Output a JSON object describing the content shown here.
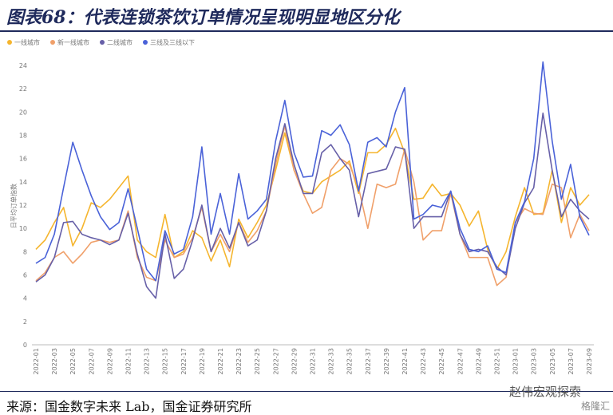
{
  "header": {
    "title": "图表68：代表连锁茶饮订单情况呈现明显地区分化"
  },
  "chart_data": {
    "type": "line",
    "y_label": "日平均订单指数",
    "categories": [
      "2022-01",
      null,
      "2022-03",
      null,
      "2022-05",
      null,
      "2022-07",
      null,
      "2022-09",
      null,
      "2022-11",
      null,
      "2022-13",
      null,
      "2022-15",
      null,
      "2022-17",
      null,
      "2022-19",
      null,
      "2022-21",
      null,
      "2022-23",
      null,
      "2022-25",
      null,
      "2022-27",
      null,
      "2022-29",
      null,
      "2022-31",
      null,
      "2022-33",
      null,
      "2022-35",
      null,
      "2022-37",
      null,
      "2022-39",
      null,
      "2022-41",
      null,
      "2022-43",
      null,
      "2022-45",
      null,
      "2022-47",
      null,
      "2022-49",
      null,
      "2022-51",
      null,
      "2023-01",
      null,
      "2023-03",
      null,
      "2023-05",
      null,
      "2023-07",
      null,
      "2023-09"
    ],
    "series": [
      {
        "name": "一线城市",
        "color": "#f5b52e",
        "values": [
          8.2,
          9.0,
          10.5,
          11.8,
          8.5,
          10.0,
          12.2,
          11.8,
          12.5,
          13.5,
          14.5,
          9.0,
          8.0,
          7.5,
          11.2,
          7.5,
          8.0,
          9.8,
          9.2,
          7.2,
          9.0,
          6.7,
          10.8,
          9.2,
          10.5,
          12.0,
          15.0,
          18.2,
          15.0,
          13.2,
          13.0,
          14.0,
          14.5,
          15.0,
          15.8,
          13.0,
          16.5,
          16.5,
          17.2,
          18.6,
          16.5,
          12.5,
          12.6,
          13.8,
          12.8,
          13.0,
          12.0,
          10.2,
          11.5,
          8.2,
          6.5,
          8.0,
          11.0,
          13.5,
          11.2,
          11.3,
          15.0,
          10.5,
          13.5,
          12.0,
          12.9
        ]
      },
      {
        "name": "新一线城市",
        "color": "#f0a06a",
        "values": [
          5.5,
          6.2,
          7.5,
          8.0,
          7.0,
          7.8,
          8.8,
          9.0,
          8.8,
          9.0,
          11.5,
          7.5,
          5.8,
          5.5,
          9.0,
          7.5,
          7.8,
          9.2,
          11.8,
          8.0,
          9.5,
          8.0,
          10.5,
          8.8,
          9.8,
          11.5,
          15.5,
          18.8,
          15.0,
          13.0,
          11.3,
          11.8,
          15.0,
          16.0,
          15.5,
          13.5,
          10.0,
          13.8,
          13.5,
          13.8,
          16.8,
          14.0,
          9.0,
          9.8,
          9.8,
          13.0,
          9.5,
          7.5,
          7.5,
          7.5,
          5.1,
          5.8,
          10.5,
          11.7,
          11.3,
          11.2,
          13.8,
          13.5,
          9.2,
          11.2,
          9.8
        ]
      },
      {
        "name": "二线城市",
        "color": "#6760a8",
        "values": [
          5.4,
          6.0,
          7.5,
          10.5,
          10.6,
          9.5,
          9.2,
          9.0,
          8.6,
          9.0,
          11.3,
          7.8,
          5.0,
          4.0,
          9.5,
          5.7,
          6.5,
          9.0,
          12.0,
          8.0,
          10.0,
          8.3,
          10.5,
          8.5,
          9.0,
          11.5,
          16.0,
          19.0,
          15.5,
          13.0,
          13.0,
          16.5,
          17.2,
          16.0,
          15.0,
          11.0,
          14.7,
          14.9,
          15.1,
          17.0,
          16.8,
          10.0,
          11.0,
          11.0,
          11.0,
          13.2,
          9.5,
          8.0,
          8.2,
          8.0,
          6.7,
          6.0,
          10.0,
          12.2,
          13.5,
          19.9,
          15.0,
          11.0,
          12.5,
          11.5,
          10.8
        ]
      },
      {
        "name": "三线及三线以下",
        "color": "#4a62d8",
        "values": [
          7.0,
          7.5,
          9.5,
          13.5,
          17.4,
          15.0,
          12.8,
          11.0,
          9.9,
          10.5,
          13.4,
          10.0,
          6.5,
          5.5,
          9.8,
          7.8,
          8.2,
          11.0,
          17.0,
          9.5,
          13.0,
          9.5,
          14.7,
          10.8,
          11.5,
          12.5,
          17.5,
          21.0,
          16.5,
          14.4,
          14.5,
          18.4,
          18.0,
          18.9,
          17.2,
          13.2,
          17.4,
          17.8,
          17.0,
          20.0,
          22.1,
          10.8,
          11.2,
          12.0,
          11.8,
          13.2,
          10.0,
          8.2,
          8.0,
          8.5,
          6.5,
          6.2,
          10.5,
          12.3,
          16.0,
          24.3,
          17.5,
          12.5,
          15.5,
          11.0,
          9.4
        ]
      }
    ],
    "ylim": [
      0,
      24
    ],
    "yticks": [
      0,
      2,
      4,
      6,
      8,
      10,
      12,
      14,
      16,
      18,
      20,
      22,
      24
    ],
    "grid": false,
    "legend": "top-left"
  },
  "footer": {
    "source": "来源：国金数字未来 Lab，国金证券研究所",
    "watermark": "赵伟宏观探索",
    "logo": "格隆汇"
  }
}
